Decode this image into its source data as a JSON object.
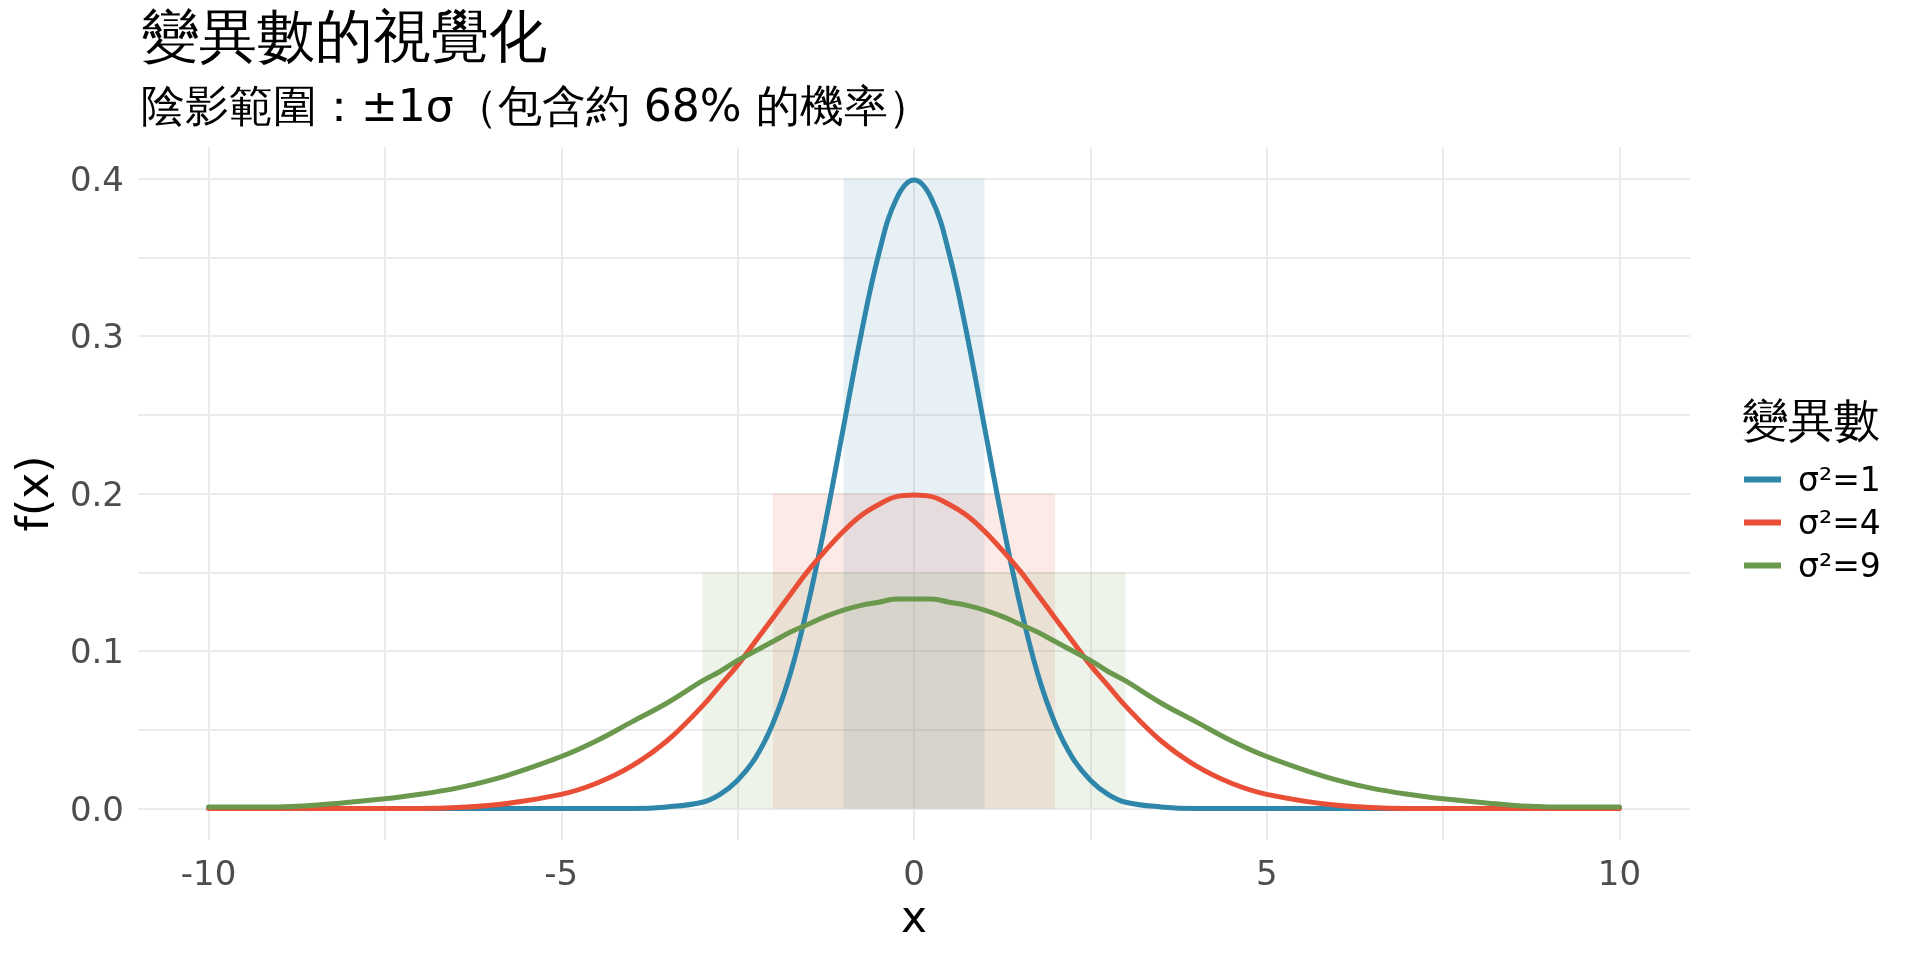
{
  "chart_data": {
    "type": "line",
    "title": "變異數的視覺化",
    "subtitle": "陰影範圍：±1σ（包含約 68% 的機率）",
    "xlabel": "x",
    "ylabel": "f(x)",
    "legend_title": "變異數",
    "x": [
      -10,
      -9,
      -8,
      -7,
      -6,
      -5,
      -4.5,
      -4,
      -3.5,
      -3,
      -2.75,
      -2.5,
      -2.25,
      -2,
      -1.75,
      -1.5,
      -1.25,
      -1,
      -0.75,
      -0.5,
      -0.25,
      0,
      0.25,
      0.5,
      0.75,
      1,
      1.25,
      1.5,
      1.75,
      2,
      2.25,
      2.5,
      2.75,
      3,
      3.5,
      4,
      4.5,
      5,
      6,
      7,
      8,
      9,
      10
    ],
    "series": [
      {
        "name": "σ²=1",
        "color": "#2e86ab",
        "values": [
          null,
          null,
          0,
          0,
          0,
          0,
          0,
          0,
          0.001,
          0.004,
          0.009,
          0.018,
          0.032,
          0.054,
          0.086,
          0.13,
          0.183,
          0.242,
          0.301,
          0.352,
          0.387,
          0.399,
          0.387,
          0.352,
          0.301,
          0.242,
          0.183,
          0.13,
          0.086,
          0.054,
          0.032,
          0.018,
          0.009,
          0.004,
          0.001,
          0,
          0,
          0,
          0,
          0,
          0,
          null,
          null
        ]
      },
      {
        "name": "σ²=4",
        "color": "#e94f37",
        "values": [
          0,
          0,
          0,
          0,
          0.002,
          0.009,
          0.016,
          0.027,
          0.043,
          0.065,
          0.078,
          0.091,
          0.106,
          0.121,
          0.136,
          0.151,
          0.164,
          0.176,
          0.186,
          0.193,
          0.198,
          0.199,
          0.198,
          0.193,
          0.186,
          0.176,
          0.164,
          0.151,
          0.136,
          0.121,
          0.106,
          0.091,
          0.078,
          0.065,
          0.043,
          0.027,
          0.016,
          0.009,
          0.002,
          0,
          0,
          0,
          0
        ]
      },
      {
        "name": "σ²=9",
        "color": "#6a994e",
        "values": [
          0.001,
          0.001,
          0.004,
          0.009,
          0.018,
          0.033,
          0.043,
          0.055,
          0.067,
          0.081,
          0.087,
          0.094,
          0.1,
          0.106,
          0.112,
          0.117,
          0.122,
          0.126,
          0.129,
          0.131,
          0.133,
          0.133,
          0.133,
          0.131,
          0.129,
          0.126,
          0.122,
          0.117,
          0.112,
          0.106,
          0.1,
          0.094,
          0.087,
          0.081,
          0.067,
          0.055,
          0.043,
          0.033,
          0.018,
          0.009,
          0.004,
          0.001,
          0.001
        ]
      },
      {
        "type": "area",
        "color": "#2e86ab",
        "x": [
          -1,
          1
        ],
        "values": [
          0.4,
          0.4
        ]
      },
      {
        "type": "area",
        "color": "#e94f37",
        "x": [
          -2,
          2
        ],
        "values": [
          0.2,
          0.2
        ]
      },
      {
        "type": "area",
        "color": "#6a994e",
        "x": [
          -3,
          3
        ],
        "values": [
          0.15,
          0.15
        ]
      }
    ],
    "xlim": [
      -11,
      11
    ],
    "ylim": [
      -0.02,
      0.42
    ],
    "xticks": [
      -10,
      {
        "value": -7.5,
        "label": null
      },
      -5,
      {
        "value": -2.5,
        "label": null
      },
      0,
      {
        "value": 2.5,
        "label": null
      },
      5,
      {
        "value": 7.5,
        "label": null
      },
      10
    ],
    "yticks": [
      {
        "value": 0,
        "label": "0.0"
      },
      {
        "value": 0.05,
        "label": null
      },
      0.1,
      {
        "value": 0.15,
        "label": null
      },
      0.2,
      {
        "value": 0.25,
        "label": null
      },
      0.3,
      {
        "value": 0.35,
        "label": null
      },
      0.4
    ],
    "grid": true,
    "legend": "right"
  }
}
